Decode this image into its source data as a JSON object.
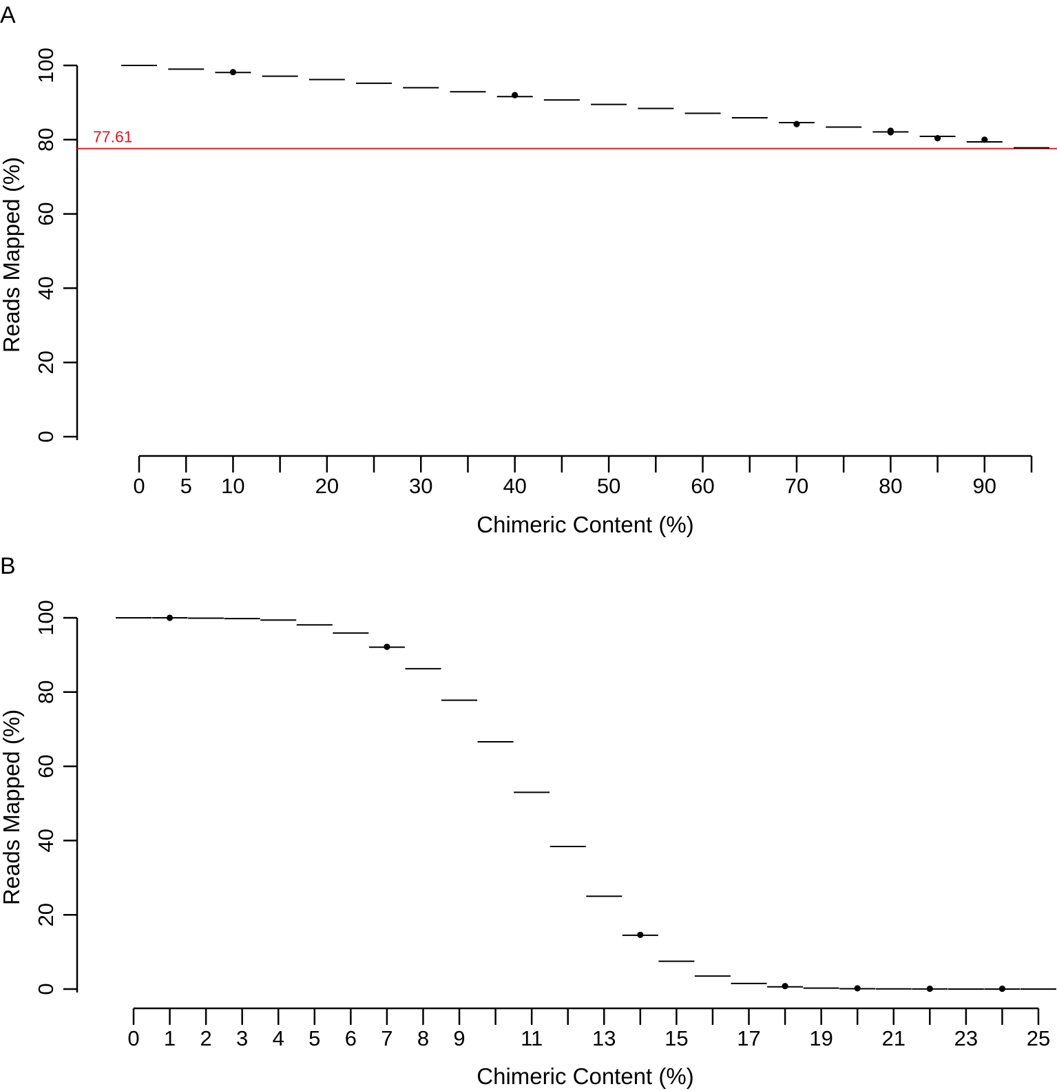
{
  "chart_data": [
    {
      "panel": "A",
      "type": "boxplot",
      "xlabel": "Chimeric Content (%)",
      "ylabel": "Reads Mapped (%)",
      "ylim": [
        0,
        100
      ],
      "yticks": [
        0,
        20,
        40,
        60,
        80,
        100
      ],
      "x": [
        0,
        5,
        10,
        15,
        20,
        25,
        30,
        35,
        40,
        45,
        50,
        55,
        60,
        65,
        70,
        75,
        80,
        85,
        90,
        95
      ],
      "x_tick_labels": [
        "0",
        "5",
        "10",
        "",
        "20",
        "",
        "30",
        "",
        "40",
        "",
        "50",
        "",
        "60",
        "",
        "70",
        "",
        "80",
        "",
        "90",
        ""
      ],
      "median": [
        100,
        99.0,
        98.1,
        97.1,
        96.2,
        95.2,
        94.0,
        92.9,
        91.6,
        90.7,
        89.5,
        88.4,
        87.1,
        85.9,
        84.6,
        83.4,
        82.1,
        80.9,
        79.4,
        77.8
      ],
      "outliers": [
        [
          10,
          98.2
        ],
        [
          40,
          92.0
        ],
        [
          70,
          84.2
        ],
        [
          80,
          82.0
        ],
        [
          80,
          82.4
        ],
        [
          85,
          80.4
        ],
        [
          90,
          80.0
        ]
      ],
      "reference_line": {
        "y": 77.61,
        "label": "77.61",
        "color": "#e8131b"
      },
      "grid": false
    },
    {
      "panel": "B",
      "type": "boxplot",
      "xlabel": "Chimeric Content (%)",
      "ylabel": "Reads Mapped (%)",
      "ylim": [
        0,
        100
      ],
      "yticks": [
        0,
        20,
        40,
        60,
        80,
        100
      ],
      "x": [
        0,
        1,
        2,
        3,
        4,
        5,
        6,
        7,
        8,
        9,
        10,
        11,
        12,
        13,
        14,
        15,
        16,
        17,
        18,
        19,
        20,
        21,
        22,
        23,
        24,
        25
      ],
      "x_tick_labels": [
        "0",
        "1",
        "2",
        "3",
        "4",
        "5",
        "6",
        "7",
        "8",
        "9",
        "",
        "11",
        "",
        "13",
        "",
        "15",
        "",
        "17",
        "",
        "19",
        "",
        "21",
        "",
        "23",
        "",
        "25"
      ],
      "median": [
        100,
        100,
        99.9,
        99.8,
        99.4,
        98.1,
        95.9,
        92.1,
        86.3,
        77.8,
        66.6,
        53.0,
        38.4,
        25.0,
        14.5,
        7.5,
        3.5,
        1.5,
        0.6,
        0.25,
        0.1,
        0.05,
        0.02,
        0.01,
        0.0,
        0.0
      ],
      "outliers": [
        [
          1,
          100
        ],
        [
          7,
          92.2
        ],
        [
          14,
          14.6
        ],
        [
          18,
          0.8
        ],
        [
          20,
          0.2
        ],
        [
          22,
          0.1
        ],
        [
          24,
          0.1
        ]
      ],
      "grid": false
    }
  ]
}
